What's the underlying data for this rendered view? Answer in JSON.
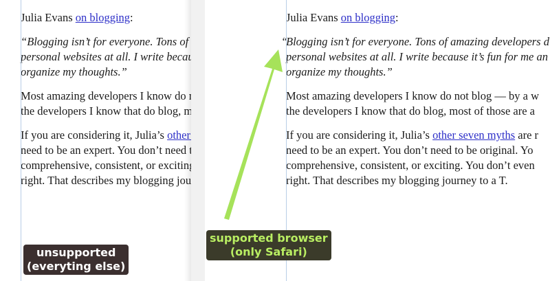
{
  "article": {
    "p1_prefix": "Julia Evans ",
    "p1_link": "on blogging",
    "p1_suffix": ":",
    "quote_open": "“",
    "quote_line1": "Blogging isn’t for everyone. Tons of amazing developers d",
    "quote_line2": "personal websites at all. I write because it’s fun for me an",
    "quote_line3": "organize my thoughts.”",
    "p3_line1": "Most amazing developers I know do not blog — by a w",
    "p3_line2": "the developers I know that do blog, most of those are a",
    "p4_line1_prefix": "If you are considering it, Julia’s ",
    "p4_link": "other seven myths",
    "p4_line1_suffix": " are r",
    "p4_line2": "need to be an expert. You don’t need to be original. Yo",
    "p4_line3": "comprehensive, consistent, or exciting. You don’t even",
    "p4_line4": "right. That describes my blogging journey to a T."
  },
  "labels": {
    "unsupported_line1": "unsupported",
    "unsupported_line2": "(everyting else)",
    "supported_line1": "supported browser",
    "supported_line2": "(only Safari)"
  },
  "colors": {
    "link": "#2d2fc8",
    "arrow": "#a6e25a",
    "label_supported_text": "#b9ee62",
    "guide": "#b8cde6"
  }
}
